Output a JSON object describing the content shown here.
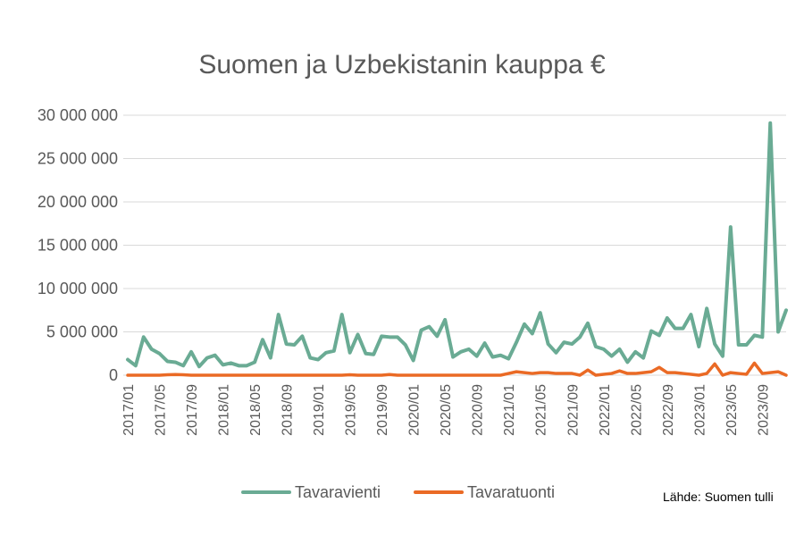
{
  "chart_data": {
    "type": "line",
    "title": "Suomen ja Uzbekistanin kauppa €",
    "source": "Lähde: Suomen tulli",
    "ylim": [
      0,
      30000000
    ],
    "yticks": [
      0,
      5000000,
      10000000,
      15000000,
      20000000,
      25000000,
      30000000
    ],
    "ytick_labels": [
      "0",
      "5 000 000",
      "10 000 000",
      "15 000 000",
      "20 000 000",
      "25 000 000",
      "30 000 000"
    ],
    "xtick_labels": [
      "2017/01",
      "2017/05",
      "2017/09",
      "2018/01",
      "2018/05",
      "2018/09",
      "2019/01",
      "2019/05",
      "2019/09",
      "2020/01",
      "2020/05",
      "2020/09",
      "2021/01",
      "2021/05",
      "2021/09",
      "2022/01",
      "2022/05",
      "2022/09",
      "2023/01",
      "2023/05",
      "2023/09"
    ],
    "xtick_step": 4,
    "grid": true,
    "legend_position": "bottom",
    "series": [
      {
        "name": "Tavaravienti",
        "color": "#6aab94",
        "values": [
          1800000,
          1100000,
          4400000,
          3000000,
          2500000,
          1600000,
          1500000,
          1100000,
          2700000,
          1000000,
          2000000,
          2300000,
          1200000,
          1400000,
          1100000,
          1100000,
          1500000,
          4100000,
          2000000,
          7000000,
          3600000,
          3500000,
          4500000,
          2000000,
          1800000,
          2600000,
          2800000,
          7000000,
          2600000,
          4700000,
          2500000,
          2400000,
          4500000,
          4400000,
          4400000,
          3500000,
          1700000,
          5200000,
          5600000,
          4500000,
          6400000,
          2100000,
          2700000,
          3000000,
          2200000,
          3700000,
          2100000,
          2300000,
          1900000,
          3800000,
          5900000,
          4800000,
          7200000,
          3600000,
          2600000,
          3800000,
          3600000,
          4400000,
          6000000,
          3300000,
          3000000,
          2200000,
          3000000,
          1500000,
          2700000,
          2000000,
          5100000,
          4600000,
          6600000,
          5400000,
          5400000,
          7000000,
          3300000,
          7700000,
          3600000,
          2200000,
          17100000,
          3500000,
          3500000,
          4600000,
          4400000,
          29100000,
          5000000,
          7500000
        ]
      },
      {
        "name": "Tavaratuonti",
        "color": "#ea6a25",
        "values": [
          0,
          0,
          0,
          0,
          0,
          50000,
          80000,
          50000,
          0,
          0,
          0,
          0,
          0,
          0,
          0,
          0,
          0,
          0,
          0,
          0,
          0,
          0,
          0,
          0,
          0,
          0,
          0,
          0,
          50000,
          0,
          0,
          0,
          0,
          80000,
          0,
          0,
          0,
          0,
          0,
          0,
          0,
          0,
          0,
          0,
          0,
          0,
          0,
          0,
          200000,
          400000,
          300000,
          200000,
          300000,
          300000,
          200000,
          200000,
          200000,
          0,
          600000,
          0,
          100000,
          200000,
          500000,
          200000,
          200000,
          300000,
          400000,
          900000,
          300000,
          300000,
          200000,
          100000,
          0,
          200000,
          1300000,
          0,
          300000,
          200000,
          100000,
          1400000,
          200000,
          300000,
          400000,
          0
        ]
      }
    ]
  }
}
